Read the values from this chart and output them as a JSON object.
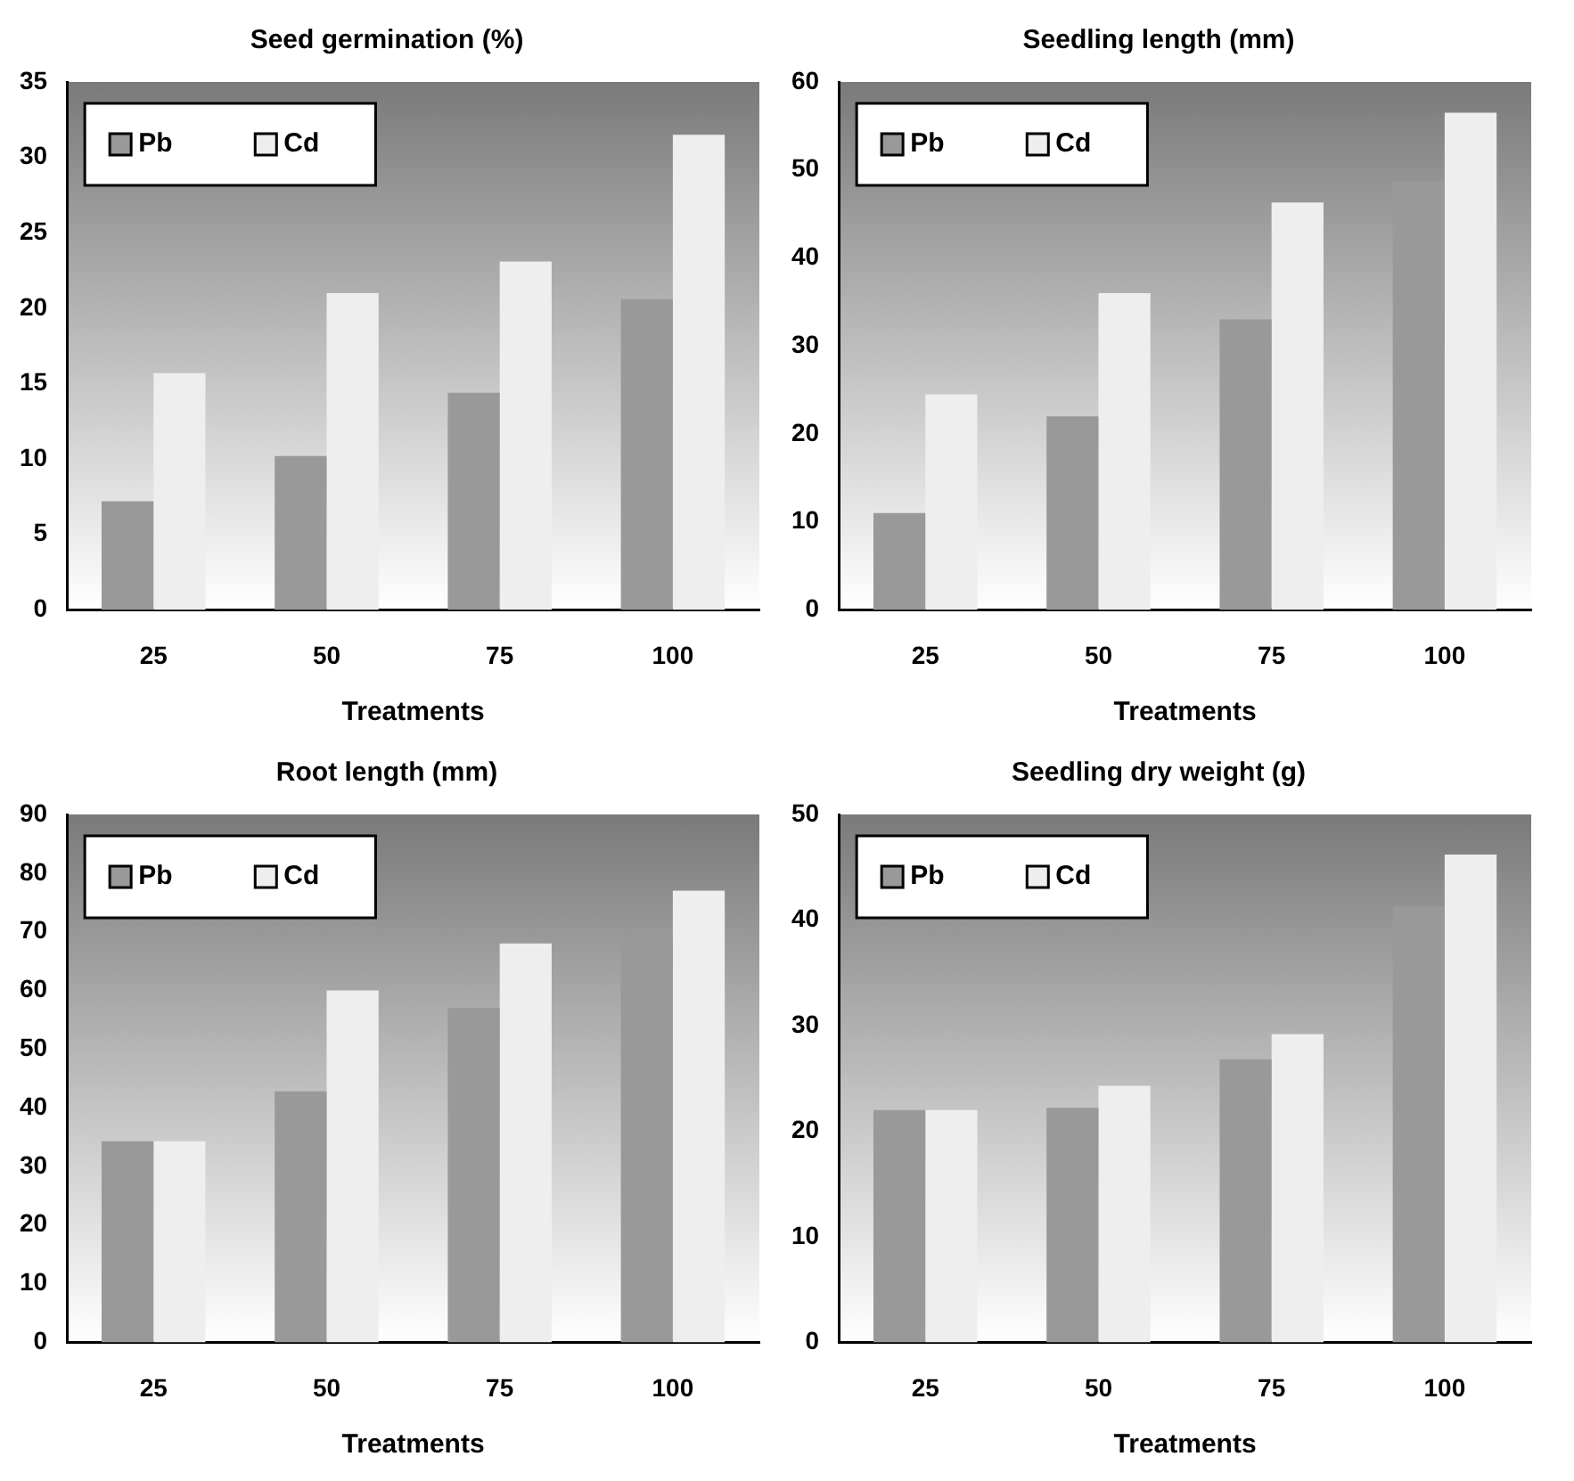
{
  "chart_data": [
    {
      "type": "bar",
      "title": "Seed germination (%)",
      "xlabel": "Treatments",
      "categories": [
        "25",
        "50",
        "75",
        "100"
      ],
      "ylim": [
        0,
        35
      ],
      "yticks": [
        0,
        5,
        10,
        15,
        20,
        25,
        30,
        35
      ],
      "grid": false,
      "legend": "top left",
      "series": [
        {
          "name": "Pb",
          "color": "#999999",
          "values": [
            7.2,
            10.2,
            14.4,
            20.6
          ]
        },
        {
          "name": "Cd",
          "color": "#eeeeee",
          "values": [
            15.7,
            21.0,
            23.1,
            31.5
          ]
        }
      ]
    },
    {
      "type": "bar",
      "title": "Seedling length (mm)",
      "xlabel": "Treatments",
      "categories": [
        "25",
        "50",
        "75",
        "100"
      ],
      "ylim": [
        0,
        60
      ],
      "yticks": [
        0,
        10,
        20,
        30,
        40,
        50,
        60
      ],
      "grid": false,
      "legend": "top left",
      "series": [
        {
          "name": "Pb",
          "color": "#999999",
          "values": [
            11,
            22,
            33,
            48.7
          ]
        },
        {
          "name": "Cd",
          "color": "#eeeeee",
          "values": [
            24.5,
            36,
            46.3,
            56.5
          ]
        }
      ]
    },
    {
      "type": "bar",
      "title": "Root length (mm)",
      "xlabel": "Treatments",
      "categories": [
        "25",
        "50",
        "75",
        "100"
      ],
      "ylim": [
        0,
        90
      ],
      "yticks": [
        0,
        10,
        20,
        30,
        40,
        50,
        60,
        70,
        80,
        90
      ],
      "grid": false,
      "legend": "top left",
      "series": [
        {
          "name": "Pb",
          "color": "#999999",
          "values": [
            34.3,
            42.8,
            57,
            68.7
          ]
        },
        {
          "name": "Cd",
          "color": "#eeeeee",
          "values": [
            34.3,
            60,
            68,
            77
          ]
        }
      ]
    },
    {
      "type": "bar",
      "title": "Seedling dry weight (g)",
      "xlabel": "Treatments",
      "categories": [
        "25",
        "50",
        "75",
        "100"
      ],
      "ylim": [
        0,
        50
      ],
      "yticks": [
        0,
        10,
        20,
        30,
        40,
        50
      ],
      "grid": false,
      "legend": "top left",
      "series": [
        {
          "name": "Pb",
          "color": "#999999",
          "values": [
            22,
            22.2,
            26.8,
            41.3
          ]
        },
        {
          "name": "Cd",
          "color": "#eeeeee",
          "values": [
            22,
            24.3,
            29.2,
            46.2
          ]
        }
      ]
    }
  ]
}
